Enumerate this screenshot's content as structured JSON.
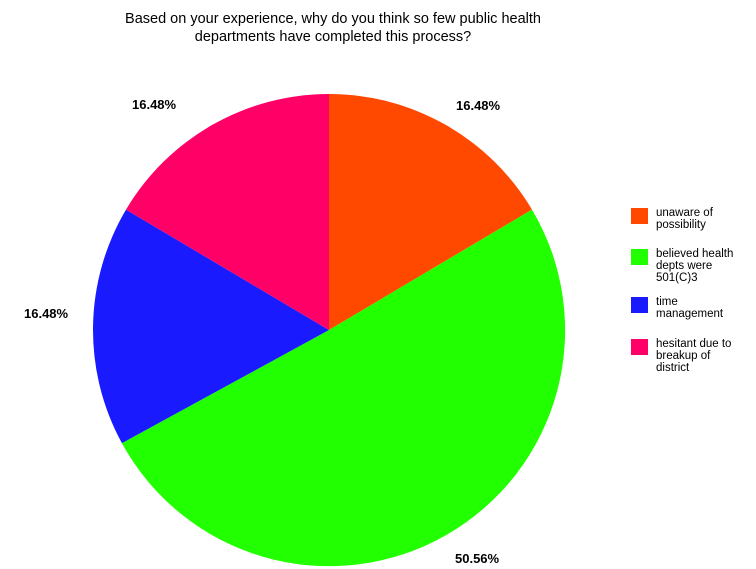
{
  "chart_data": {
    "type": "pie",
    "title": "Based on your experience, why do you think so few public health\ndepartments have completed this process?",
    "slices": [
      {
        "label": "unaware of possibility",
        "legend_lines": [
          "unaware of",
          "possibility"
        ],
        "value": 16.48,
        "value_label": "16.48%",
        "color": "#ff4800"
      },
      {
        "label": "believed health depts were 501(C)3",
        "legend_lines": [
          "believed health",
          "depts were",
          "501(C)3"
        ],
        "value": 50.56,
        "value_label": "50.56%",
        "color": "#22ff00"
      },
      {
        "label": "time management",
        "legend_lines": [
          "time",
          "management"
        ],
        "value": 16.48,
        "value_label": "16.48%",
        "color": "#1a1aff"
      },
      {
        "label": "hesitant due to breakup of district",
        "legend_lines": [
          "hesitant due to",
          "breakup of",
          "district"
        ],
        "value": 16.48,
        "value_label": "16.48%",
        "color": "#ff0066"
      }
    ],
    "start_angle": "12 o'clock",
    "direction": "clockwise",
    "legend_position": "right"
  }
}
